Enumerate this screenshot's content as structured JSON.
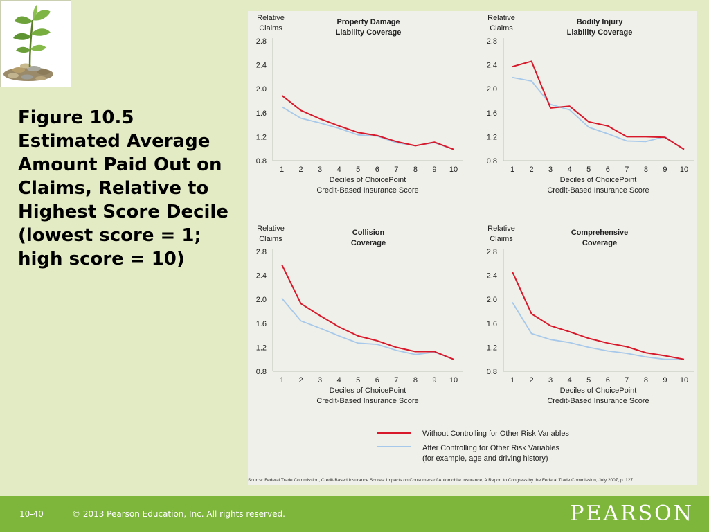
{
  "slide": {
    "title": "Figure 10.5 Estimated Average Amount Paid Out on Claims, Relative to Highest Score Decile (lowest score = 1; high score = 10)",
    "source": "Source: Federal Trade Commission, Credit-Based Insurance Scores: Impacts on Consumers of Automobile Insurance, A Report to Congress by the Federal Trade Commission, July 2007, p. 127.",
    "logo_icon": "seedling-on-coins-icon"
  },
  "footer": {
    "page": "10-40",
    "copyright": "© 2013 Pearson Education, Inc. All rights reserved.",
    "brand": "PEARSON"
  },
  "legend": {
    "without": "Without Controlling for Other Risk Variables",
    "after_line1": "After Controlling for Other Risk Variables",
    "after_line2": "(for example, age and driving history)"
  },
  "colors": {
    "without": "#d7192b",
    "after": "#a6c8ea",
    "background": "#e3ebc5",
    "panel": "#eff0e9",
    "footer": "#7db63a"
  },
  "chart_data": [
    {
      "type": "line",
      "title_lines": [
        "Property Damage",
        "Liability Coverage"
      ],
      "ylabel_lines": [
        "Relative",
        "Claims"
      ],
      "xlabel_lines": [
        "Deciles of ChoicePoint",
        "Credit-Based Insurance Score"
      ],
      "x": [
        1,
        2,
        3,
        4,
        5,
        6,
        7,
        8,
        9,
        10
      ],
      "ylim": [
        0.8,
        2.8
      ],
      "yticks": [
        "2.8",
        "2.4",
        "2.0",
        "1.6",
        "1.2",
        "0.8"
      ],
      "series": [
        {
          "key": "without",
          "values": [
            1.89,
            1.64,
            1.5,
            1.38,
            1.27,
            1.22,
            1.12,
            1.05,
            1.11,
            0.99
          ]
        },
        {
          "key": "after",
          "values": [
            1.7,
            1.51,
            1.43,
            1.34,
            1.23,
            1.21,
            1.1,
            1.05,
            1.1,
            0.99
          ]
        }
      ]
    },
    {
      "type": "line",
      "title_lines": [
        "Bodily Injury",
        "Liability Coverage"
      ],
      "ylabel_lines": [
        "Relative",
        "Claims"
      ],
      "xlabel_lines": [
        "Deciles of ChoicePoint",
        "Credit-Based Insurance Score"
      ],
      "x": [
        1,
        2,
        3,
        4,
        5,
        6,
        7,
        8,
        9,
        10
      ],
      "ylim": [
        0.8,
        2.8
      ],
      "yticks": [
        "2.8",
        "2.4",
        "2.0",
        "1.6",
        "1.2",
        "0.8"
      ],
      "series": [
        {
          "key": "without",
          "values": [
            2.37,
            2.46,
            1.68,
            1.71,
            1.45,
            1.38,
            1.2,
            1.2,
            1.19,
            0.99
          ]
        },
        {
          "key": "after",
          "values": [
            2.19,
            2.13,
            1.74,
            1.65,
            1.36,
            1.25,
            1.13,
            1.12,
            1.2,
            0.99
          ]
        }
      ]
    },
    {
      "type": "line",
      "title_lines": [
        "Collision",
        "Coverage"
      ],
      "ylabel_lines": [
        "Relative",
        "Claims"
      ],
      "xlabel_lines": [
        "Deciles of ChoicePoint",
        "Credit-Based Insurance Score"
      ],
      "x": [
        1,
        2,
        3,
        4,
        5,
        6,
        7,
        8,
        9,
        10
      ],
      "ylim": [
        0.8,
        2.8
      ],
      "yticks": [
        "2.8",
        "2.4",
        "2.0",
        "1.6",
        "1.2",
        "0.8"
      ],
      "series": [
        {
          "key": "without",
          "values": [
            2.58,
            1.93,
            1.73,
            1.54,
            1.39,
            1.31,
            1.2,
            1.13,
            1.13,
            1.0
          ]
        },
        {
          "key": "after",
          "values": [
            2.02,
            1.64,
            1.52,
            1.39,
            1.27,
            1.25,
            1.15,
            1.08,
            1.12,
            1.0
          ]
        }
      ]
    },
    {
      "type": "line",
      "title_lines": [
        "Comprehensive",
        "Coverage"
      ],
      "ylabel_lines": [
        "Relative",
        "Claims"
      ],
      "xlabel_lines": [
        "Deciles of ChoicePoint",
        "Credit-Based Insurance Score"
      ],
      "x": [
        1,
        2,
        3,
        4,
        5,
        6,
        7,
        8,
        9,
        10
      ],
      "ylim": [
        0.8,
        2.8
      ],
      "yticks": [
        "2.8",
        "2.4",
        "2.0",
        "1.6",
        "1.2",
        "0.8"
      ],
      "series": [
        {
          "key": "without",
          "values": [
            2.46,
            1.76,
            1.56,
            1.46,
            1.35,
            1.27,
            1.21,
            1.11,
            1.06,
            1.0
          ]
        },
        {
          "key": "after",
          "values": [
            1.95,
            1.43,
            1.33,
            1.28,
            1.2,
            1.14,
            1.1,
            1.04,
            1.0,
            1.0
          ]
        }
      ]
    }
  ]
}
